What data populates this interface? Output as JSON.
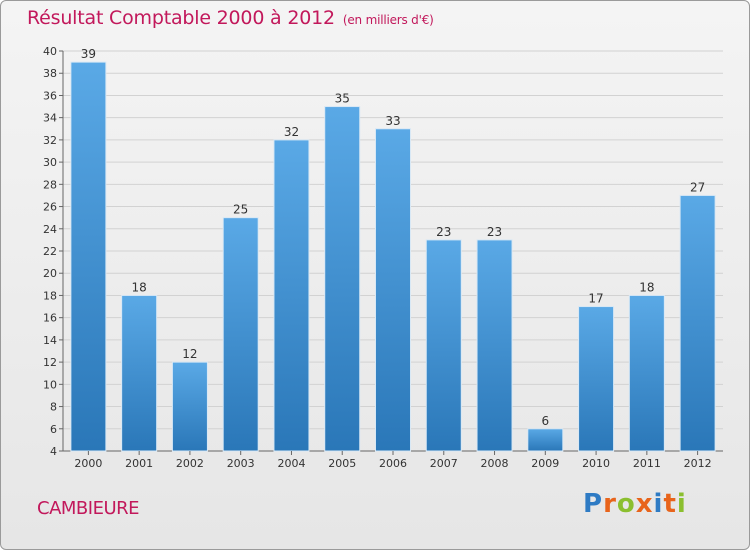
{
  "title": "Résultat Comptable 2000 à 2012",
  "subtitle": "(en milliers d'€)",
  "commune": "CAMBIEURE",
  "logo": {
    "letters": [
      "P",
      "r",
      "o",
      "x",
      "i",
      "t",
      "i"
    ],
    "colors": [
      "#2e7bc4",
      "#e8641b",
      "#8bbf2f",
      "#e8641b",
      "#2e7bc4",
      "#e8641b",
      "#8bbf2f"
    ]
  },
  "colors": {
    "bar_top": "#5aa9e6",
    "bar_bottom": "#2a77b8",
    "title": "#c2185b"
  },
  "chart_data": {
    "type": "bar",
    "title": "Résultat Comptable 2000 à 2012",
    "xlabel": "",
    "ylabel": "",
    "ylim": [
      4,
      40
    ],
    "yticks": [
      4,
      6,
      8,
      10,
      12,
      14,
      16,
      18,
      20,
      22,
      24,
      26,
      28,
      30,
      32,
      34,
      36,
      38,
      40
    ],
    "categories": [
      "2000",
      "2001",
      "2002",
      "2003",
      "2004",
      "2005",
      "2006",
      "2007",
      "2008",
      "2009",
      "2010",
      "2011",
      "2012"
    ],
    "values": [
      39,
      18,
      12,
      25,
      32,
      35,
      33,
      23,
      23,
      6,
      17,
      18,
      27
    ]
  }
}
